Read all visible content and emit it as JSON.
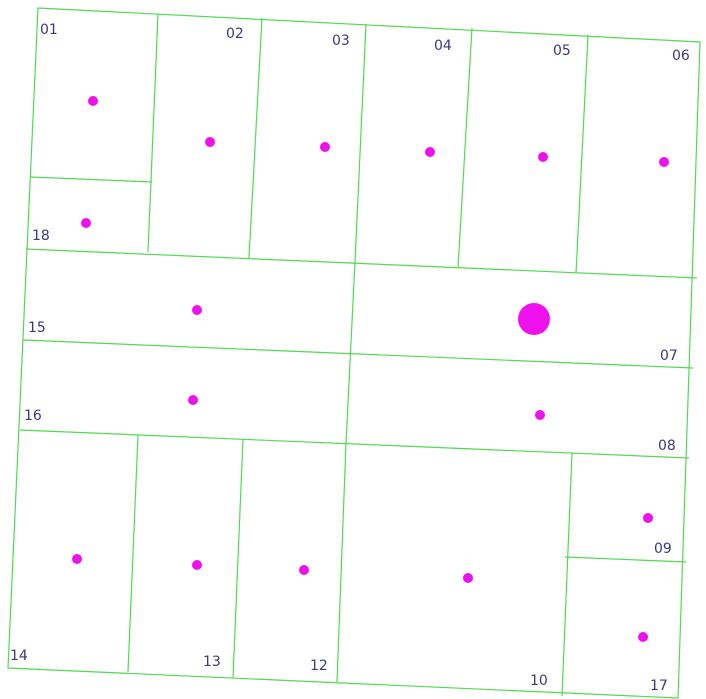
{
  "colors": {
    "boundary": "#55d855",
    "centroid": "#ee11ee",
    "label": "#3a3a7a",
    "background": "#ffffff"
  },
  "parcels": [
    {
      "id": "p01",
      "label": "01"
    },
    {
      "id": "p02",
      "label": "02"
    },
    {
      "id": "p03",
      "label": "03"
    },
    {
      "id": "p04",
      "label": "04"
    },
    {
      "id": "p05",
      "label": "05"
    },
    {
      "id": "p06",
      "label": "06"
    },
    {
      "id": "p07",
      "label": "07"
    },
    {
      "id": "p08",
      "label": "08"
    },
    {
      "id": "p09",
      "label": "09"
    },
    {
      "id": "p10",
      "label": "10"
    },
    {
      "id": "p12",
      "label": "12"
    },
    {
      "id": "p13",
      "label": "13"
    },
    {
      "id": "p14",
      "label": "14"
    },
    {
      "id": "p15",
      "label": "15"
    },
    {
      "id": "p16",
      "label": "16"
    },
    {
      "id": "p17",
      "label": "17"
    },
    {
      "id": "p18",
      "label": "18"
    }
  ],
  "highlighted_parcel": "07"
}
